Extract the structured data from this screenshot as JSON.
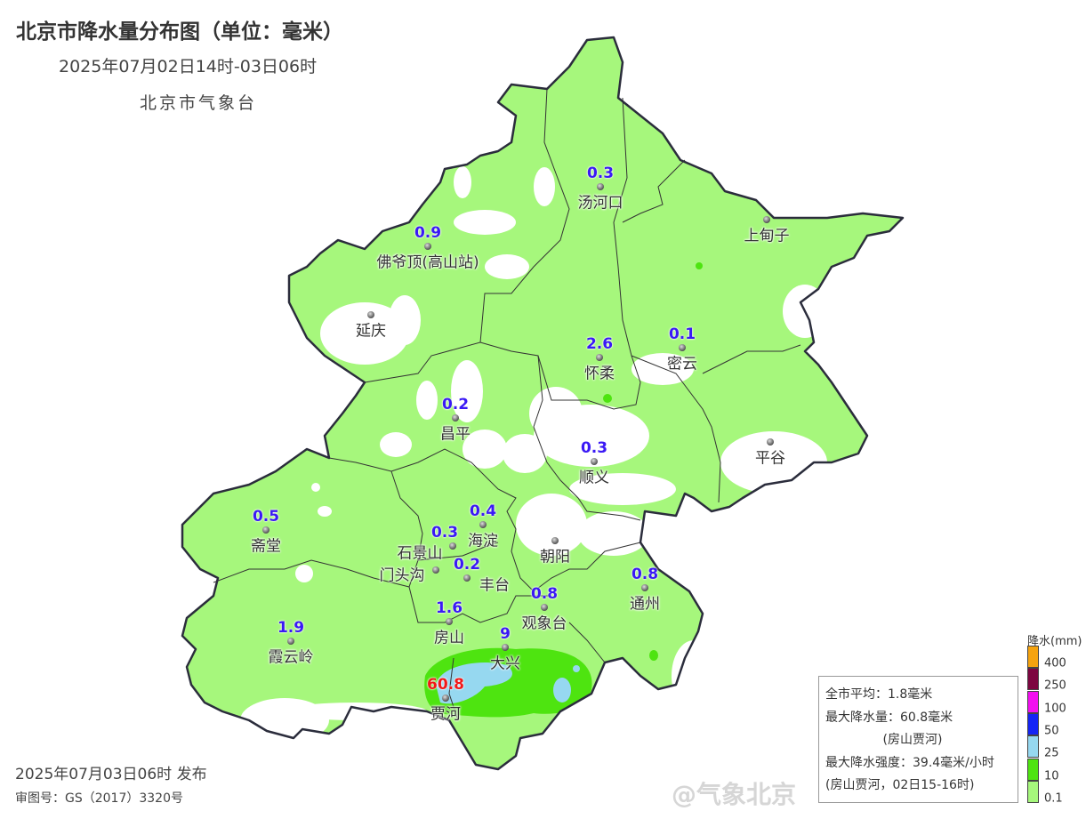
{
  "header": {
    "title": "北京市降水量分布图（单位：毫米）",
    "period": "2025年07月02日14时-03日06时",
    "agency": "北京市气象台"
  },
  "footer": {
    "issued": "2025年07月03日06时 发布",
    "approval": "审图号：GS（2017）3320号"
  },
  "stations": [
    {
      "name": "汤河口",
      "value": "0.3"
    },
    {
      "name": "上甸子",
      "value": ""
    },
    {
      "name": "佛爷顶(高山站)",
      "value": "0.9"
    },
    {
      "name": "延庆",
      "value": ""
    },
    {
      "name": "怀柔",
      "value": "2.6"
    },
    {
      "name": "密云",
      "value": "0.1"
    },
    {
      "name": "昌平",
      "value": "0.2"
    },
    {
      "name": "平谷",
      "value": ""
    },
    {
      "name": "顺义",
      "value": "0.3"
    },
    {
      "name": "斋堂",
      "value": "0.5"
    },
    {
      "name": "海淀",
      "value": "0.4"
    },
    {
      "name": "石景山",
      "value": "0.3"
    },
    {
      "name": "朝阳",
      "value": ""
    },
    {
      "name": "门头沟",
      "value": ""
    },
    {
      "name": "丰台",
      "value": "0.2"
    },
    {
      "name": "通州",
      "value": "0.8"
    },
    {
      "name": "观象台",
      "value": "0.8"
    },
    {
      "name": "房山",
      "value": "1.6"
    },
    {
      "name": "霞云岭",
      "value": "1.9"
    },
    {
      "name": "大兴",
      "value": "9"
    },
    {
      "name": "贾河",
      "value": "60.8"
    }
  ],
  "summary": {
    "city_average": "全市平均：1.8毫米",
    "max_amount": "最大降水量：60.8毫米",
    "max_amount_location": "(房山贾河)",
    "max_intensity": "最大降水强度：39.4毫米/小时",
    "max_intensity_location": "(房山贾河，02日15-16时)"
  },
  "legend": {
    "title": "降水(mm)",
    "bins": [
      {
        "label": "400",
        "color": "#f5a30f"
      },
      {
        "label": "250",
        "color": "#7d0640"
      },
      {
        "label": "100",
        "color": "#f30ff0"
      },
      {
        "label": "50",
        "color": "#1424f5"
      },
      {
        "label": "25",
        "color": "#96d8f0"
      },
      {
        "label": "10",
        "color": "#4ee410"
      },
      {
        "label": "0.1",
        "color": "#a6f77c"
      }
    ]
  },
  "watermark": "@气象北京"
}
